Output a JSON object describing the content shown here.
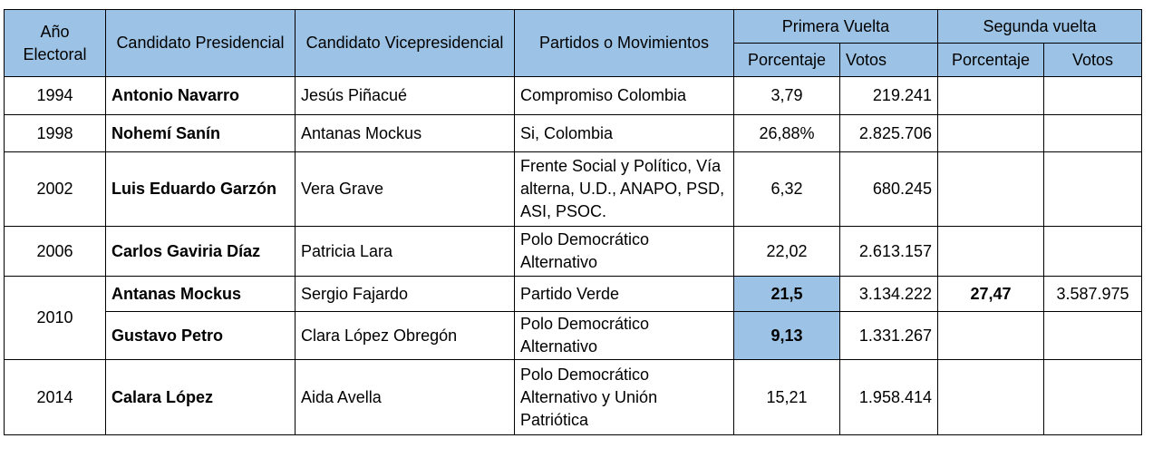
{
  "header": {
    "year": "Año Electoral",
    "president": "Candidato Presidencial",
    "vice": "Candidato Vicepresidencial",
    "parties": "Partidos o Movimientos",
    "first_round": "Primera Vuelta",
    "second_round": "Segunda vuelta",
    "pct1": "Porcentaje",
    "votes1": "Votos",
    "pct2": "Porcentaje",
    "votes2": "Votos"
  },
  "rows": [
    {
      "year": "1994",
      "president": "Antonio Navarro",
      "vice": "Jesús Piñacué",
      "parties": "Compromiso Colombia",
      "pct1": "3,79",
      "votes1": "219.241",
      "pct2": "",
      "votes2": ""
    },
    {
      "year": "1998",
      "president": "Nohemí Sanín",
      "vice": "Antanas Mockus",
      "parties": "Si, Colombia",
      "pct1": "26,88%",
      "votes1": "2.825.706",
      "pct2": "",
      "votes2": ""
    },
    {
      "year": "2002",
      "president": "Luis Eduardo Garzón",
      "vice": "Vera Grave",
      "parties": "Frente Social y Político, Vía alterna, U.D., ANAPO, PSD, ASI, PSOC.",
      "pct1": "6,32",
      "votes1": "680.245",
      "pct2": "",
      "votes2": ""
    },
    {
      "year": "2006",
      "president": "Carlos Gaviria Díaz",
      "vice": "Patricia Lara",
      "parties": "Polo Democrático Alternativo",
      "pct1": "22,02",
      "votes1": "2.613.157",
      "pct2": "",
      "votes2": ""
    },
    {
      "year": "2010",
      "president": "Antanas Mockus",
      "vice": "Sergio Fajardo",
      "parties": "Partido Verde",
      "pct1": "21,5",
      "votes1": "3.134.222",
      "pct2": "27,47",
      "votes2": "3.587.975"
    },
    {
      "year": "",
      "president": "Gustavo Petro",
      "vice": "Clara López Obregón",
      "parties": "Polo Democrático Alternativo",
      "pct1": "9,13",
      "votes1": "1.331.267",
      "pct2": "",
      "votes2": ""
    },
    {
      "year": "2014",
      "president": "Calara López",
      "vice": "Aida Avella",
      "parties": "Polo Democrático Alternativo y Unión Patriótica",
      "pct1": "15,21",
      "votes1": "1.958.414",
      "pct2": "",
      "votes2": ""
    }
  ],
  "colors": {
    "header_bg": "#9cc3e5",
    "highlight_bg": "#9cc3e5"
  }
}
